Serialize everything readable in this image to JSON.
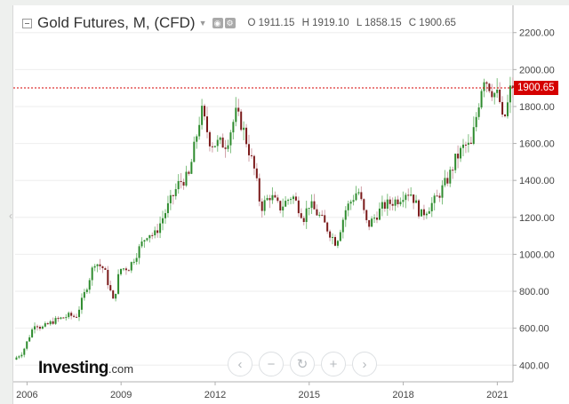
{
  "header": {
    "title": "Gold Futures, M, (CFD)",
    "open": "O 1911.15",
    "high": "H 1919.10",
    "low": "L 1858.15",
    "close": "C 1900.65"
  },
  "last_price_label": "1900.65",
  "branding": {
    "name": "Investing",
    "suffix": ".com"
  },
  "colors": {
    "up": "#2e8b2e",
    "down": "#7a1a1a",
    "last_line": "#d50000",
    "grid": "#eeeeee",
    "axis": "#b0b0b0"
  },
  "nav_icons": [
    "chevron-left-icon",
    "zoom-out-icon",
    "reset-icon",
    "zoom-in-icon",
    "chevron-right-icon"
  ],
  "nav_glyphs": [
    "‹",
    "−",
    "↻",
    "+",
    "›"
  ],
  "chart_data": {
    "type": "candlestick",
    "title": "Gold Futures, M, (CFD)",
    "interval": "monthly",
    "last_price": 1900.65,
    "ylim": [
      310,
      2290
    ],
    "y_ticks": [
      400,
      600,
      800,
      1000,
      1200,
      1400,
      1600,
      1800,
      2000,
      2200
    ],
    "y_tick_labels": [
      "400.00",
      "600.00",
      "800.00",
      "1000.00",
      "1200.00",
      "1400.00",
      "1600.00",
      "1800.00",
      "2000.00",
      "2200.00"
    ],
    "x_ticks": [
      2006,
      2009,
      2012,
      2015,
      2018,
      2021
    ],
    "x_tick_labels": [
      "2006",
      "2009",
      "2012",
      "2015",
      "2018",
      "2021"
    ],
    "xlim": [
      2005.62,
      2021.5
    ],
    "anchors": [
      [
        2005.62,
        430
      ],
      [
        2005.9,
        470
      ],
      [
        2006.3,
        630
      ],
      [
        2006.5,
        600
      ],
      [
        2006.9,
        640
      ],
      [
        2007.4,
        670
      ],
      [
        2007.6,
        660
      ],
      [
        2007.9,
        800
      ],
      [
        2008.2,
        960
      ],
      [
        2008.5,
        920
      ],
      [
        2008.8,
        740
      ],
      [
        2009.0,
        920
      ],
      [
        2009.3,
        930
      ],
      [
        2009.9,
        1120
      ],
      [
        2010.1,
        1100
      ],
      [
        2010.9,
        1390
      ],
      [
        2011.2,
        1420
      ],
      [
        2011.6,
        1780
      ],
      [
        2011.9,
        1600
      ],
      [
        2012.4,
        1600
      ],
      [
        2012.7,
        1760
      ],
      [
        2012.9,
        1700
      ],
      [
        2013.3,
        1450
      ],
      [
        2013.5,
        1250
      ],
      [
        2013.8,
        1320
      ],
      [
        2014.1,
        1250
      ],
      [
        2014.5,
        1320
      ],
      [
        2014.9,
        1190
      ],
      [
        2015.0,
        1280
      ],
      [
        2015.4,
        1200
      ],
      [
        2015.9,
        1060
      ],
      [
        2016.2,
        1240
      ],
      [
        2016.6,
        1350
      ],
      [
        2016.9,
        1150
      ],
      [
        2017.4,
        1260
      ],
      [
        2017.9,
        1300
      ],
      [
        2018.1,
        1340
      ],
      [
        2018.3,
        1330
      ],
      [
        2018.6,
        1210
      ],
      [
        2019.1,
        1300
      ],
      [
        2019.5,
        1420
      ],
      [
        2019.7,
        1510
      ],
      [
        2020.0,
        1590
      ],
      [
        2020.2,
        1580
      ],
      [
        2020.6,
        1970
      ],
      [
        2020.9,
        1880
      ],
      [
        2021.1,
        1850
      ],
      [
        2021.2,
        1720
      ],
      [
        2021.35,
        1770
      ],
      [
        2021.4,
        1870
      ],
      [
        2021.5,
        1900
      ]
    ],
    "random_seed": 7
  }
}
